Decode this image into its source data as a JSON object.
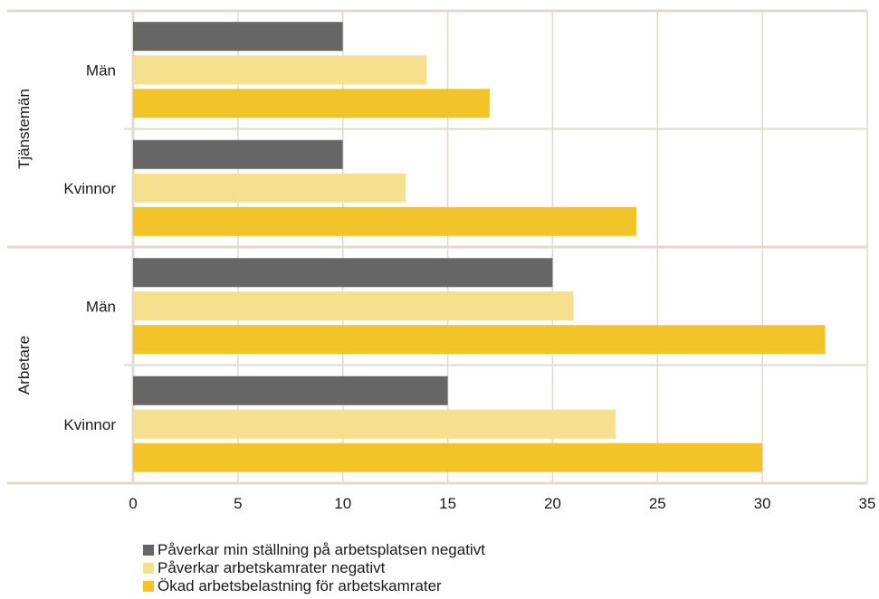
{
  "chart_data": {
    "type": "bar",
    "orientation": "horizontal",
    "xlim": [
      0,
      35
    ],
    "xticks": [
      "0",
      "5",
      "10",
      "15",
      "20",
      "25",
      "30",
      "35"
    ],
    "grid": true,
    "legend_position": "bottom",
    "groups": [
      {
        "name": "Tjänstemän",
        "categories": [
          {
            "label": "Män",
            "values": [
              10,
              14,
              17
            ]
          },
          {
            "label": "Kvinnor",
            "values": [
              10,
              13,
              24
            ]
          }
        ]
      },
      {
        "name": "Arbetare",
        "categories": [
          {
            "label": "Män",
            "values": [
              20,
              21,
              33
            ]
          },
          {
            "label": "Kvinnor",
            "values": [
              15,
              23,
              30
            ]
          }
        ]
      }
    ],
    "series": [
      {
        "name": "Påverkar min ställning på arbetsplatsen negativt",
        "color": "#666666"
      },
      {
        "name": "Påverkar arbetskamrater negativt",
        "color": "#f6e08e"
      },
      {
        "name": "Ökad arbetsbelastning för arbetskamrater",
        "color": "#f2c42a"
      }
    ]
  }
}
